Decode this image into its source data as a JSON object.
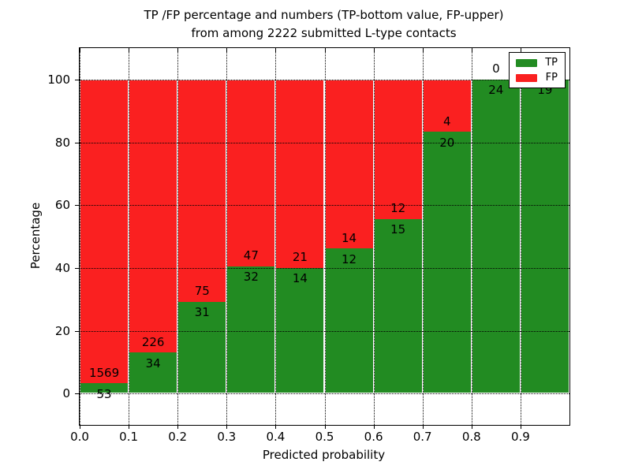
{
  "chart_data": {
    "type": "bar",
    "variant": "stacked-percentage",
    "title_line1": "TP /FP percentage and numbers (TP-bottom value, FP-upper)",
    "title_line2": "from among 2222 submitted L-type contacts",
    "xlabel": "Predicted probability",
    "ylabel": "Percentage",
    "total_contacts": 2222,
    "xlim": [
      0.0,
      1.0
    ],
    "ylim": [
      -10,
      110
    ],
    "bin_width": 0.1,
    "bin_starts": [
      0.0,
      0.1,
      0.2,
      0.3,
      0.4,
      0.5,
      0.6,
      0.7,
      0.8,
      0.9
    ],
    "xtick_labels": [
      "0.0",
      "0.1",
      "0.2",
      "0.3",
      "0.4",
      "0.5",
      "0.6",
      "0.7",
      "0.8",
      "0.9"
    ],
    "ytick_values": [
      0,
      20,
      40,
      60,
      80,
      100
    ],
    "grid": "dotted",
    "series": [
      {
        "name": "TP",
        "color": "#228b22",
        "values": [
          53,
          34,
          31,
          32,
          14,
          12,
          15,
          20,
          24,
          19
        ]
      },
      {
        "name": "FP",
        "color": "#fa2020",
        "values": [
          1569,
          226,
          75,
          47,
          21,
          14,
          12,
          4,
          0,
          0
        ]
      }
    ],
    "annotation_note": "TP count below boundary, FP count above boundary",
    "legend": {
      "position": "upper right",
      "entries": [
        {
          "label": "TP",
          "color": "#228b22"
        },
        {
          "label": "FP",
          "color": "#fa2020"
        }
      ]
    }
  }
}
